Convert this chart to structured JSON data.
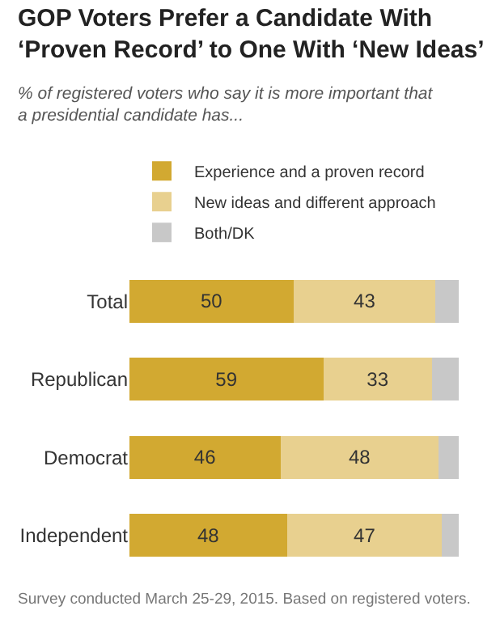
{
  "chart_data": {
    "type": "bar",
    "orientation": "horizontal",
    "stacked": true,
    "title": "GOP Voters Prefer a Candidate With\n‘Proven Record’ to One With ‘New Ideas’",
    "subtitle": "% of registered voters who say it is more important that\na presidential candidate has...",
    "categories": [
      "Total",
      "Republican",
      "Democrat",
      "Independent"
    ],
    "series": [
      {
        "name": "Experience and a proven record",
        "color": "#d2a931",
        "values": [
          50,
          59,
          46,
          48
        ],
        "value_labels": [
          "50",
          "59",
          "46",
          "48"
        ]
      },
      {
        "name": "New ideas and different approach",
        "color": "#e8d08f",
        "values": [
          43,
          33,
          48,
          47
        ],
        "value_labels": [
          "43",
          "33",
          "48",
          "47"
        ]
      },
      {
        "name": "Both/DK",
        "color": "#c8c8c8",
        "values": [
          7,
          8,
          6,
          5
        ]
      }
    ],
    "legend": "top left",
    "tick_labels": "y",
    "annotations": [
      "Survey conducted March 25-29, 2015. Based on registered voters."
    ]
  }
}
